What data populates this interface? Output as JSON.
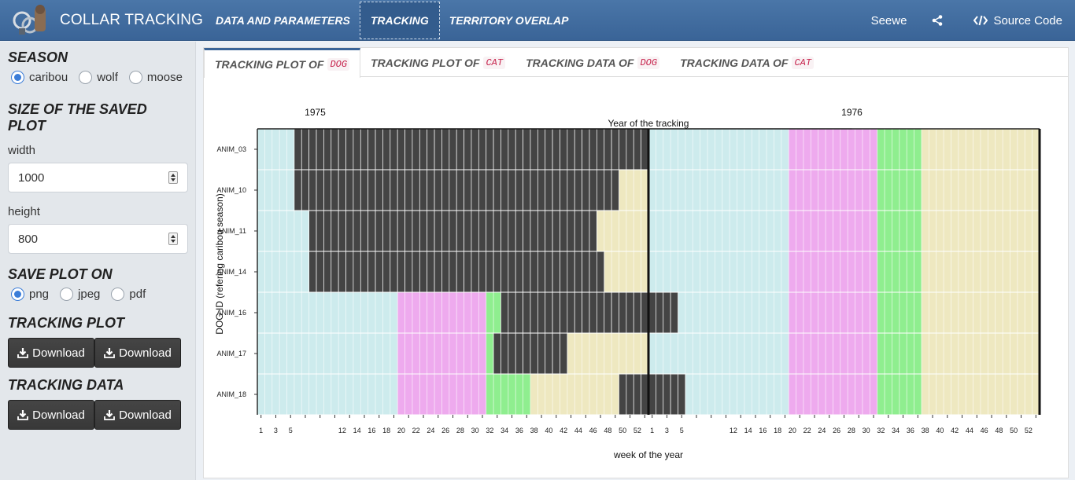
{
  "header": {
    "title": "COLLAR TRACKING",
    "nav": [
      {
        "label": "DATA AND PARAMETERS",
        "active": false
      },
      {
        "label": "TRACKING",
        "active": true
      },
      {
        "label": "TERRITORY OVERLAP",
        "active": false
      }
    ],
    "right": {
      "user": "Seewe",
      "source": "Source Code"
    }
  },
  "sidebar": {
    "season": {
      "title": "SEASON",
      "options": [
        "caribou",
        "wolf",
        "moose"
      ],
      "selected": "caribou"
    },
    "size": {
      "title": "SIZE OF THE SAVED PLOT",
      "width_label": "width",
      "width_value": "1000",
      "height_label": "height",
      "height_value": "800"
    },
    "save": {
      "title": "SAVE PLOT ON",
      "options": [
        "png",
        "jpeg",
        "pdf"
      ],
      "selected": "png"
    },
    "tracking_plot": {
      "title": "TRACKING PLOT",
      "buttons": [
        "Download",
        "Download"
      ]
    },
    "tracking_data": {
      "title": "TRACKING DATA",
      "buttons": [
        "Download",
        "Download"
      ]
    }
  },
  "tabs": [
    {
      "label": "TRACKING PLOT OF",
      "code": "DOG",
      "active": true
    },
    {
      "label": "TRACKING PLOT OF",
      "code": "CAT",
      "active": false
    },
    {
      "label": "TRACKING DATA OF",
      "code": "DOG",
      "active": false
    },
    {
      "label": "TRACKING DATA OF",
      "code": "CAT",
      "active": false
    }
  ],
  "chart_data": {
    "type": "heatmap",
    "title": "Year of the tracking",
    "years": [
      "1975",
      "1976"
    ],
    "xlabel": "week of the year",
    "ylabel": "DOG ID  (refering caribou season)",
    "weeks_per_year": 53,
    "x_tick_labels": [
      "1",
      "3",
      "5",
      "12",
      "14",
      "16",
      "18",
      "20",
      "22",
      "24",
      "26",
      "28",
      "30",
      "32",
      "34",
      "36",
      "38",
      "40",
      "42",
      "44",
      "46",
      "48",
      "50",
      "52"
    ],
    "animals": [
      "ANIM_03",
      "ANIM_10",
      "ANIM_11",
      "ANIM_14",
      "ANIM_16",
      "ANIM_17",
      "ANIM_18"
    ],
    "season_colors": {
      "winter": "#cdebed",
      "spring": "#eeaaee",
      "summer": "#8fee8f",
      "autumn": "#eee8c0"
    },
    "season_weeks": [
      {
        "season": "winter",
        "from": 1,
        "to": 19
      },
      {
        "season": "spring",
        "from": 20,
        "to": 31
      },
      {
        "season": "summer",
        "from": 32,
        "to": 37
      },
      {
        "season": "autumn",
        "from": 38,
        "to": 53
      }
    ],
    "tracked_color": "#444444",
    "tracked_periods": {
      "ANIM_03": [
        [
          1975,
          6,
          53
        ]
      ],
      "ANIM_10": [
        [
          1975,
          6,
          49
        ]
      ],
      "ANIM_11": [
        [
          1975,
          8,
          46
        ]
      ],
      "ANIM_14": [
        [
          1975,
          8,
          47
        ]
      ],
      "ANIM_16": [
        [
          1975,
          34,
          53
        ],
        [
          1976,
          1,
          4
        ]
      ],
      "ANIM_17": [
        [
          1975,
          33,
          42
        ]
      ],
      "ANIM_18": [
        [
          1975,
          50,
          53
        ],
        [
          1976,
          1,
          5
        ]
      ]
    },
    "grid": true
  }
}
